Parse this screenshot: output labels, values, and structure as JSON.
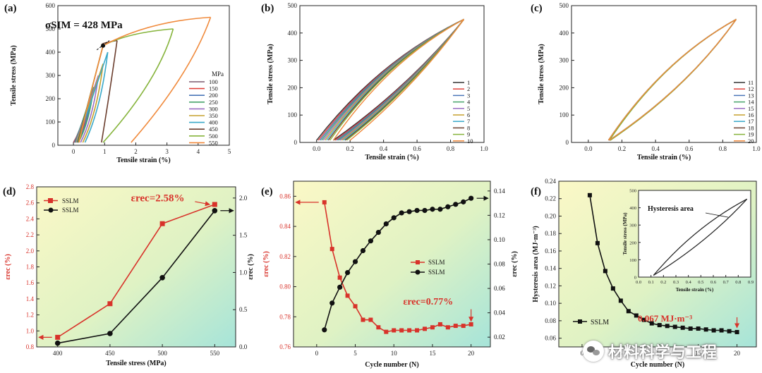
{
  "chart_data": [
    {
      "id": "a",
      "panel_label": "(a)",
      "type": "line",
      "title": "",
      "xlabel": "Tensile strain (%)",
      "ylabel": "Tensile stress (MPa)",
      "xlim": [
        -0.5,
        5
      ],
      "ylim": [
        0,
        600
      ],
      "xticks": [
        "0",
        "1",
        "2",
        "3",
        "4",
        "5"
      ],
      "yticks": [
        "0",
        "100",
        "200",
        "300",
        "400",
        "500",
        "600"
      ],
      "legend_title": "MPa",
      "legend": [
        "100",
        "150",
        "200",
        "250",
        "300",
        "350",
        "400",
        "450",
        "500",
        "550"
      ],
      "colors": [
        "#7b5a6e",
        "#e0423c",
        "#4a76b8",
        "#47a36b",
        "#9a6dc2",
        "#c6a02d",
        "#3aa9c9",
        "#6b3e2e",
        "#86b43c",
        "#f08a3c"
      ],
      "annotation": "σSIM = 428 MPa",
      "loops": [
        {
          "label": "100",
          "maxStress": 100,
          "maxStrain": 0.35,
          "resStrain": 0.0
        },
        {
          "label": "150",
          "maxStress": 150,
          "maxStrain": 0.45,
          "resStrain": 0.05
        },
        {
          "label": "200",
          "maxStress": 200,
          "maxStrain": 0.55,
          "resStrain": 0.08
        },
        {
          "label": "250",
          "maxStress": 250,
          "maxStrain": 0.65,
          "resStrain": 0.1
        },
        {
          "label": "300",
          "maxStress": 300,
          "maxStrain": 0.8,
          "resStrain": 0.15
        },
        {
          "label": "350",
          "maxStress": 350,
          "maxStrain": 0.95,
          "resStrain": 0.2
        },
        {
          "label": "400",
          "maxStress": 400,
          "maxStrain": 1.1,
          "resStrain": 0.25
        },
        {
          "label": "450",
          "maxStress": 450,
          "maxStrain": 1.4,
          "resStrain": 0.9
        },
        {
          "label": "500",
          "maxStress": 500,
          "maxStrain": 3.2,
          "resStrain": 0.95
        },
        {
          "label": "550",
          "maxStress": 550,
          "maxStrain": 4.4,
          "resStrain": 1.85
        }
      ]
    },
    {
      "id": "b",
      "panel_label": "(b)",
      "type": "line",
      "title": "",
      "xlabel": "Tensile strain (%)",
      "ylabel": "Tensile stress (MPa)",
      "xlim": [
        -0.1,
        1.0
      ],
      "ylim": [
        0,
        500
      ],
      "xticks": [
        "0.0",
        "0.2",
        "0.4",
        "0.6",
        "0.8",
        "1.0"
      ],
      "yticks": [
        "0",
        "100",
        "200",
        "300",
        "400",
        "500"
      ],
      "legend": [
        "1",
        "2",
        "3",
        "4",
        "5",
        "6",
        "7",
        "8",
        "9",
        "10"
      ],
      "colors": [
        "#333333",
        "#e0423c",
        "#4a76b8",
        "#47a36b",
        "#9a6dc2",
        "#c6a02d",
        "#3aa9c9",
        "#6b3e2e",
        "#86b43c",
        "#f08a3c"
      ],
      "max_point": [
        0.88,
        450
      ],
      "start_strains": [
        0.0,
        0.01,
        0.02,
        0.03,
        0.04,
        0.05,
        0.06,
        0.07,
        0.08,
        0.1
      ]
    },
    {
      "id": "c",
      "panel_label": "(c)",
      "type": "line",
      "title": "",
      "xlabel": "Tensile strain (%)",
      "ylabel": "Tensile stress (MPa)",
      "xlim": [
        -0.1,
        1.0
      ],
      "ylim": [
        0,
        500
      ],
      "xticks": [
        "0.0",
        "0.2",
        "0.4",
        "0.6",
        "0.8",
        "1.0"
      ],
      "yticks": [
        "0",
        "100",
        "200",
        "300",
        "400",
        "500"
      ],
      "legend": [
        "11",
        "12",
        "13",
        "14",
        "15",
        "16",
        "17",
        "18",
        "19",
        "20"
      ],
      "colors": [
        "#333333",
        "#e0423c",
        "#4a76b8",
        "#47a36b",
        "#9a6dc2",
        "#c6a02d",
        "#3aa9c9",
        "#6b3e2e",
        "#86b43c",
        "#f08a3c"
      ],
      "max_point": [
        0.88,
        450
      ],
      "start_strain": 0.12
    },
    {
      "id": "d",
      "panel_label": "(d)",
      "type": "line",
      "xlabel": "Tensile stress (MPa)",
      "ylabel_left": "εrec (%)",
      "ylabel_right": "εrec (%)",
      "categories": [
        "400",
        "450",
        "500",
        "550"
      ],
      "x": [
        400,
        450,
        500,
        550
      ],
      "xlim": [
        380,
        570
      ],
      "ylim_left": [
        0.8,
        2.8
      ],
      "ylim_right": [
        0,
        2.15
      ],
      "yticks_left": [
        "0.8",
        "1.0",
        "1.2",
        "1.4",
        "1.6",
        "1.8",
        "2.0",
        "2.2",
        "2.4",
        "2.6",
        "2.8"
      ],
      "yticks_right": [
        "0.0",
        "0.5",
        "1.0",
        "1.5",
        "2.0"
      ],
      "series": [
        {
          "name": "SSLM",
          "color": "#d8322a",
          "marker": "square",
          "axis": "left",
          "values": [
            0.92,
            1.34,
            2.34,
            2.58
          ]
        },
        {
          "name": "SSLM",
          "color": "#111111",
          "marker": "circle",
          "axis": "right",
          "values": [
            0.05,
            0.18,
            0.93,
            1.83
          ]
        }
      ],
      "annotation": "εrec=2.58%"
    },
    {
      "id": "e",
      "panel_label": "(e)",
      "type": "line",
      "xlabel": "Cycle number (N)",
      "ylabel_left": "εrec (%)",
      "ylabel_right": "εrec (%)",
      "xlim": [
        -3,
        22.5
      ],
      "xticks": [
        "0",
        "5",
        "10",
        "15",
        "20"
      ],
      "ylim_left": [
        0.76,
        0.87
      ],
      "ylim_right": [
        0.012,
        0.148
      ],
      "yticks_left": [
        "0.76",
        "0.78",
        "0.80",
        "0.82",
        "0.84",
        "0.86"
      ],
      "yticks_right": [
        "0.02",
        "0.04",
        "0.06",
        "0.08",
        "0.10",
        "0.12",
        "0.14"
      ],
      "x": [
        1,
        2,
        3,
        4,
        5,
        6,
        7,
        8,
        9,
        10,
        11,
        12,
        13,
        14,
        15,
        16,
        17,
        18,
        19,
        20
      ],
      "series": [
        {
          "name": "SSLM",
          "color": "#d8322a",
          "marker": "square",
          "axis": "left",
          "values": [
            0.856,
            0.825,
            0.806,
            0.794,
            0.787,
            0.778,
            0.778,
            0.773,
            0.77,
            0.771,
            0.771,
            0.771,
            0.771,
            0.772,
            0.773,
            0.775,
            0.773,
            0.774,
            0.774,
            0.775
          ]
        },
        {
          "name": "SSLM",
          "color": "#111111",
          "marker": "circle",
          "axis": "right",
          "values": [
            0.026,
            0.048,
            0.061,
            0.073,
            0.082,
            0.091,
            0.099,
            0.106,
            0.113,
            0.118,
            0.122,
            0.123,
            0.124,
            0.124,
            0.125,
            0.125,
            0.127,
            0.129,
            0.131,
            0.134
          ]
        }
      ],
      "annotation": "εrec=0.77%"
    },
    {
      "id": "f",
      "panel_label": "(f)",
      "type": "line",
      "xlabel": "Cycle number (N)",
      "ylabel": "Hysteresis area (MJ·m⁻³)",
      "xlim": [
        -3,
        22.5
      ],
      "xticks": [
        "0",
        "5",
        "10",
        "15",
        "20"
      ],
      "ylim": [
        0.05,
        0.24
      ],
      "yticks": [
        "0.06",
        "0.08",
        "0.10",
        "0.12",
        "0.14",
        "0.16",
        "0.18",
        "0.20",
        "0.22",
        "0.24"
      ],
      "x": [
        1,
        2,
        3,
        4,
        5,
        6,
        7,
        8,
        9,
        10,
        11,
        12,
        13,
        14,
        15,
        16,
        17,
        18,
        19,
        20
      ],
      "series": [
        {
          "name": "SSLM",
          "color": "#111111",
          "marker": "square",
          "values": [
            0.224,
            0.169,
            0.137,
            0.117,
            0.103,
            0.091,
            0.086,
            0.081,
            0.077,
            0.075,
            0.074,
            0.073,
            0.072,
            0.071,
            0.071,
            0.07,
            0.069,
            0.069,
            0.068,
            0.067
          ]
        }
      ],
      "annotation": "0.067 MJ·m⁻³",
      "inset": {
        "xlabel": "Tensile strain (%)",
        "ylabel": "Tensile stress (MPa)",
        "xlim": [
          0,
          0.9
        ],
        "ylim": [
          0,
          500
        ],
        "xticks": [
          "0.0",
          "0.1",
          "0.2",
          "0.3",
          "0.4",
          "0.5",
          "0.6",
          "0.7",
          "0.8",
          "0.9"
        ],
        "yticks": [
          "0",
          "100",
          "200",
          "300",
          "400",
          "500"
        ],
        "annotation": "Hysteresis area",
        "start_strain": 0.12,
        "max_point": [
          0.87,
          450
        ]
      }
    }
  ],
  "watermark": {
    "text": "材料科学与工程"
  }
}
